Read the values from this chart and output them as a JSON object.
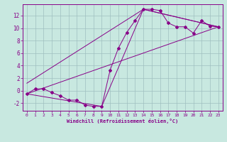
{
  "background_color": "#c8e8e0",
  "grid_color": "#9fbfbf",
  "line_color": "#880088",
  "marker_color": "#880088",
  "xlabel": "Windchill (Refroidissement éolien,°C)",
  "xlim": [
    -0.5,
    23.5
  ],
  "ylim": [
    -3.2,
    13.8
  ],
  "yticks": [
    -2,
    0,
    2,
    4,
    6,
    8,
    10,
    12
  ],
  "xticks": [
    0,
    1,
    2,
    3,
    4,
    5,
    6,
    7,
    8,
    9,
    10,
    11,
    12,
    13,
    14,
    15,
    16,
    17,
    18,
    19,
    20,
    21,
    22,
    23
  ],
  "series": [
    [
      0,
      -0.5
    ],
    [
      1,
      0.3
    ],
    [
      2,
      0.3
    ],
    [
      3,
      -0.3
    ],
    [
      4,
      -0.8
    ],
    [
      5,
      -1.5
    ],
    [
      6,
      -1.5
    ],
    [
      7,
      -2.3
    ],
    [
      8,
      -2.5
    ],
    [
      9,
      -2.5
    ],
    [
      10,
      3.3
    ],
    [
      11,
      6.8
    ],
    [
      12,
      9.3
    ],
    [
      13,
      11.2
    ],
    [
      14,
      13.0
    ],
    [
      15,
      13.0
    ],
    [
      16,
      12.8
    ],
    [
      17,
      10.8
    ],
    [
      18,
      10.2
    ],
    [
      19,
      10.2
    ],
    [
      20,
      9.2
    ],
    [
      21,
      11.2
    ],
    [
      22,
      10.3
    ],
    [
      23,
      10.2
    ]
  ],
  "line_straight": [
    [
      0,
      -0.5
    ],
    [
      23,
      10.2
    ]
  ],
  "line_upper": [
    [
      0,
      1.2
    ],
    [
      14,
      13.0
    ],
    [
      23,
      10.2
    ]
  ],
  "line_lower": [
    [
      0,
      -0.5
    ],
    [
      9,
      -2.5
    ],
    [
      14,
      13.0
    ],
    [
      23,
      10.2
    ]
  ]
}
